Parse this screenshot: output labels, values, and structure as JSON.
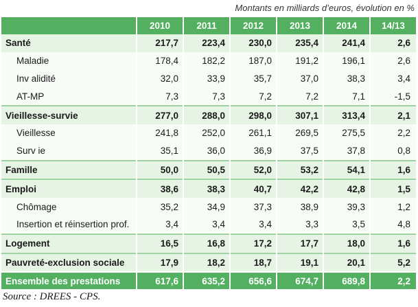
{
  "units_note": "Montants en milliards d’euros, évolution en %",
  "headers": [
    "",
    "2010",
    "2011",
    "2012",
    "2013",
    "2014",
    "14/13"
  ],
  "rows": [
    {
      "type": "cat",
      "label": "Santé",
      "values": [
        "217,7",
        "223,4",
        "230,0",
        "235,4",
        "241,4"
      ],
      "evo": "2,6"
    },
    {
      "type": "sub",
      "label": "Maladie",
      "values": [
        "178,4",
        "182,2",
        "187,0",
        "191,2",
        "196,1"
      ],
      "evo": "2,6"
    },
    {
      "type": "sub",
      "label": "Inv alidité",
      "values": [
        "32,0",
        "33,9",
        "35,7",
        "37,0",
        "38,3"
      ],
      "evo": "3,4"
    },
    {
      "type": "sub",
      "label": "AT-MP",
      "values": [
        "7,3",
        "7,3",
        "7,2",
        "7,2",
        "7,1"
      ],
      "evo": "-1,5"
    },
    {
      "type": "cat",
      "label": "Vieillesse-survie",
      "values": [
        "277,0",
        "288,0",
        "298,0",
        "307,1",
        "313,4"
      ],
      "evo": "2,1"
    },
    {
      "type": "sub",
      "label": "Vieillesse",
      "values": [
        "241,8",
        "252,0",
        "261,1",
        "269,5",
        "275,5"
      ],
      "evo": "2,2"
    },
    {
      "type": "sub",
      "label": "Surv ie",
      "values": [
        "35,1",
        "36,0",
        "36,9",
        "37,5",
        "37,8"
      ],
      "evo": "0,8"
    },
    {
      "type": "cat",
      "label": "Famille",
      "values": [
        "50,0",
        "50,5",
        "52,0",
        "53,2",
        "54,1"
      ],
      "evo": "1,6"
    },
    {
      "type": "cat",
      "label": "Emploi",
      "values": [
        "38,6",
        "38,3",
        "40,7",
        "42,2",
        "42,8"
      ],
      "evo": "1,5"
    },
    {
      "type": "sub",
      "label": "Chômage",
      "values": [
        "35,2",
        "34,9",
        "37,3",
        "38,9",
        "39,3"
      ],
      "evo": "1,2"
    },
    {
      "type": "sub",
      "label": "Insertion et réinsertion prof.",
      "values": [
        "3,4",
        "3,4",
        "3,4",
        "3,3",
        "3,5"
      ],
      "evo": "4,8"
    },
    {
      "type": "cat",
      "label": "Logement",
      "values": [
        "16,5",
        "16,8",
        "17,2",
        "17,7",
        "18,0"
      ],
      "evo": "1,6"
    },
    {
      "type": "cat",
      "label": "Pauvreté-exclusion sociale",
      "values": [
        "17,9",
        "18,2",
        "18,7",
        "19,1",
        "20,1"
      ],
      "evo": "5,2"
    },
    {
      "type": "total",
      "label": "Ensemble des prestations",
      "values": [
        "617,6",
        "635,2",
        "656,6",
        "674,7",
        "689,8"
      ],
      "evo": "2,2"
    }
  ],
  "source": "Source : DREES - CPS.",
  "colors": {
    "header_green": "#52b060",
    "category_row": "#e6f4e4",
    "sub_row": "#f8fcf7"
  }
}
